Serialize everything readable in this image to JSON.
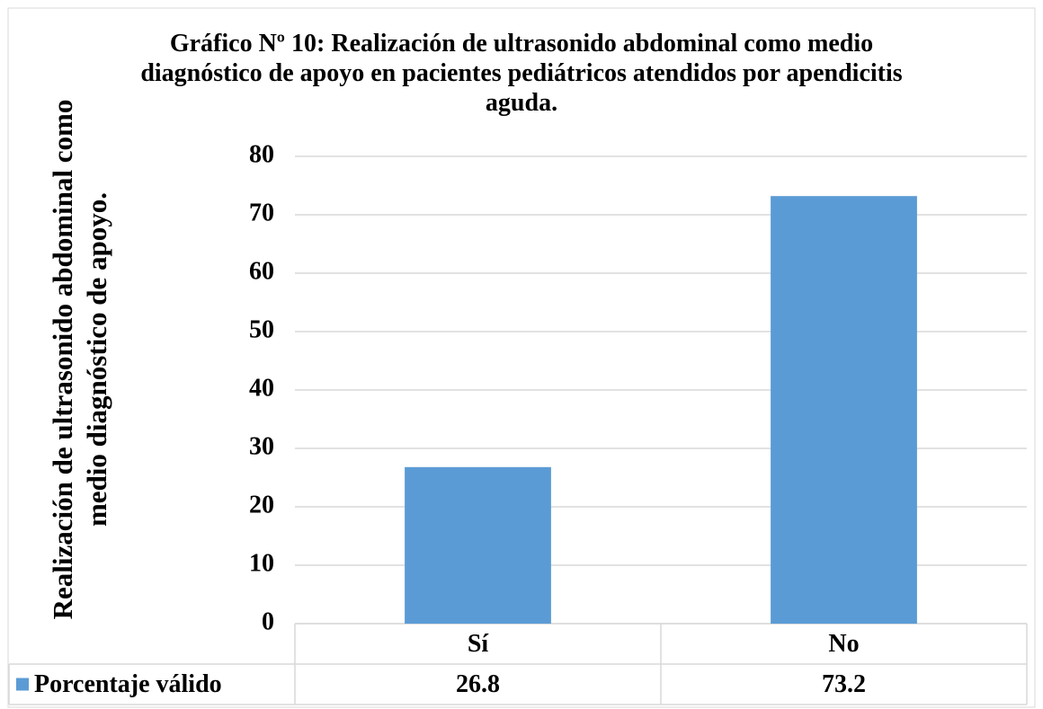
{
  "chart_data": {
    "type": "bar",
    "title": "Gráfico Nº 10: Realización de ultrasonido abdominal como medio diagnóstico de apoyo en pacientes pediátricos atendidos por apendicitis aguda.",
    "y_label": "Realización de ultrasonido abdominal como medio diagnóstico de apoyo.",
    "categories": [
      "Sí",
      "No"
    ],
    "series": [
      {
        "name": "Porcentaje válido",
        "color": "#5b9bd5",
        "values": [
          26.8,
          73.2
        ]
      }
    ],
    "ylim": [
      0,
      80
    ],
    "yticks": [
      0,
      10,
      20,
      30,
      40,
      50,
      60,
      70,
      80
    ],
    "grid": true,
    "data_table": true
  }
}
